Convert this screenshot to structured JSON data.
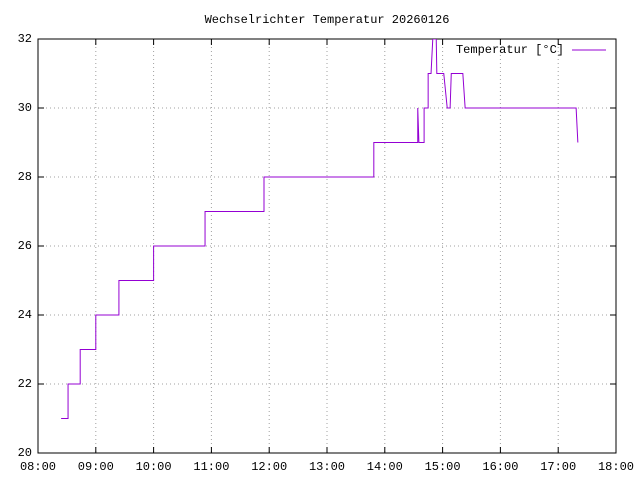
{
  "chart_data": {
    "type": "line",
    "title": "Wechselrichter Temperatur 20260126",
    "x": [
      8.4,
      8.52,
      8.52,
      8.73,
      8.73,
      9.0,
      9.0,
      9.4,
      9.4,
      10.0,
      10.0,
      10.89,
      10.89,
      11.91,
      11.91,
      13.81,
      13.81,
      14.57,
      14.57,
      14.59,
      14.68,
      14.68,
      14.75,
      14.75,
      14.8,
      14.83,
      14.89,
      14.9,
      15.02,
      15.08,
      15.13,
      15.15,
      15.35,
      15.39,
      17.31,
      17.34
    ],
    "series": [
      {
        "name": "Temperatur [°C]",
        "color": "#9400d3",
        "values": [
          21,
          21,
          22,
          22,
          23,
          23,
          24,
          24,
          25,
          25,
          26,
          26,
          27,
          27,
          28,
          28,
          29,
          29,
          30,
          29,
          29,
          30,
          30,
          31,
          31,
          32,
          32,
          31,
          31,
          30,
          30,
          31,
          31,
          30,
          30,
          29
        ]
      }
    ],
    "xlim": [
      8,
      18
    ],
    "xticks": [
      {
        "value": 8,
        "label": "08:00"
      },
      {
        "value": 9,
        "label": "09:00"
      },
      {
        "value": 10,
        "label": "10:00"
      },
      {
        "value": 11,
        "label": "11:00"
      },
      {
        "value": 12,
        "label": "12:00"
      },
      {
        "value": 13,
        "label": "13:00"
      },
      {
        "value": 14,
        "label": "14:00"
      },
      {
        "value": 15,
        "label": "15:00"
      },
      {
        "value": 16,
        "label": "16:00"
      },
      {
        "value": 17,
        "label": "17:00"
      },
      {
        "value": 18,
        "label": "18:00"
      }
    ],
    "ylim": [
      20,
      32
    ],
    "yticks": [
      20,
      22,
      24,
      26,
      28,
      30,
      32
    ],
    "grid": true,
    "legend": "top-right"
  }
}
